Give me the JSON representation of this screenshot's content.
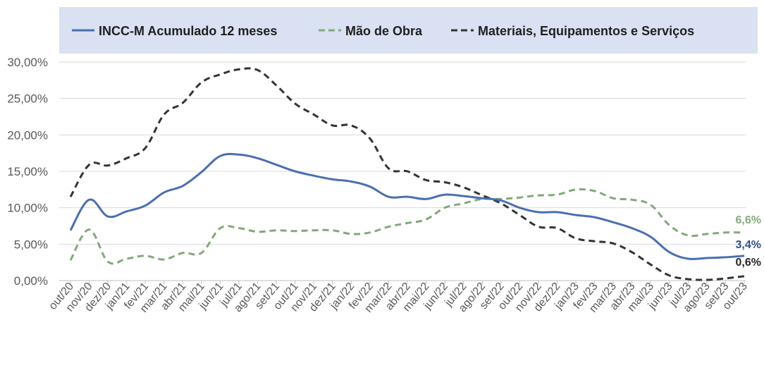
{
  "chart_data": {
    "type": "line",
    "title": "",
    "xlabel": "",
    "ylabel": "",
    "ylim": [
      0,
      30
    ],
    "y_ticks": [
      "0,00%",
      "5,00%",
      "10,00%",
      "15,00%",
      "20,00%",
      "25,00%",
      "30,00%"
    ],
    "y_tick_values": [
      0,
      5,
      10,
      15,
      20,
      25,
      30
    ],
    "grid": true,
    "legend_position": "top",
    "categories": [
      "out/20",
      "nov/20",
      "dez/20",
      "jan/21",
      "fev/21",
      "mar/21",
      "abr/21",
      "mai/21",
      "jun/21",
      "jul/21",
      "ago/21",
      "set/21",
      "out/21",
      "nov/21",
      "dez/21",
      "jan/22",
      "fev/22",
      "mar/22",
      "abr/22",
      "mai/22",
      "jun/22",
      "jul/22",
      "ago/22",
      "set/22",
      "out/22",
      "nov/22",
      "dez/22",
      "jan/23",
      "fev/23",
      "mar/23",
      "abr/23",
      "mai/23",
      "jun/23",
      "jul/23",
      "ago/23",
      "set/23",
      "out/23"
    ],
    "series": [
      {
        "name": "INCC-M Acumulado 12 meses",
        "color": "#4a6fb0",
        "dash": "solid",
        "end_label": "3,4%",
        "values": [
          6.9,
          11.1,
          8.8,
          9.5,
          10.3,
          12.1,
          13.0,
          14.9,
          17.1,
          17.3,
          16.8,
          15.9,
          15.0,
          14.4,
          13.9,
          13.6,
          12.9,
          11.5,
          11.5,
          11.2,
          11.8,
          11.6,
          11.3,
          11.0,
          10.0,
          9.4,
          9.4,
          9.0,
          8.7,
          8.0,
          7.2,
          6.0,
          3.9,
          3.0,
          3.1,
          3.2,
          3.4
        ]
      },
      {
        "name": "Mão de Obra",
        "color": "#82a97a",
        "dash": "dashed",
        "end_label": "6,6%",
        "values": [
          2.8,
          7.0,
          2.6,
          3.0,
          3.4,
          2.9,
          3.8,
          3.8,
          7.2,
          7.2,
          6.7,
          6.9,
          6.8,
          6.9,
          6.9,
          6.4,
          6.6,
          7.4,
          7.9,
          8.4,
          10.0,
          10.6,
          11.2,
          11.2,
          11.4,
          11.7,
          11.8,
          12.5,
          12.3,
          11.3,
          11.1,
          10.4,
          7.6,
          6.2,
          6.4,
          6.6,
          6.6
        ]
      },
      {
        "name": "Materiais, Equipamentos e Serviços",
        "color": "#333333",
        "dash": "dashed",
        "end_label": "0,6%",
        "values": [
          11.5,
          15.9,
          15.8,
          16.8,
          18.2,
          22.8,
          24.4,
          27.2,
          28.3,
          29.0,
          28.9,
          26.8,
          24.3,
          22.8,
          21.3,
          21.3,
          19.5,
          15.4,
          15.0,
          13.8,
          13.5,
          12.8,
          11.7,
          10.6,
          9.0,
          7.4,
          7.2,
          5.8,
          5.4,
          5.1,
          3.9,
          2.2,
          0.7,
          0.2,
          0.1,
          0.3,
          0.6
        ]
      }
    ]
  }
}
